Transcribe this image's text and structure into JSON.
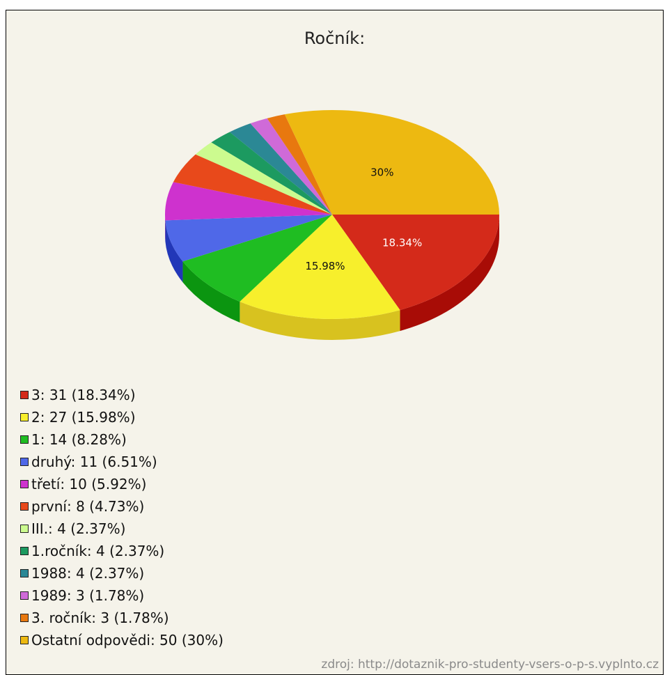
{
  "chart_data": {
    "type": "pie",
    "title": "Ročník:",
    "slices": [
      {
        "label": "3",
        "count": 31,
        "percent": "18.34%",
        "color": "#d42a1a",
        "side_color": "#a80c06",
        "slice_label": "18.34%"
      },
      {
        "label": "2",
        "count": 27,
        "percent": "15.98%",
        "color": "#f7ef2c",
        "side_color": "#d8c21f",
        "slice_label": "15.98%"
      },
      {
        "label": "1",
        "count": 14,
        "percent": "8.28%",
        "color": "#1fbd22",
        "side_color": "#0b9510",
        "slice_label": ""
      },
      {
        "label": "druhý",
        "count": 11,
        "percent": "6.51%",
        "color": "#4f68e8",
        "side_color": "#2237b8",
        "slice_label": ""
      },
      {
        "label": "třetí",
        "count": 10,
        "percent": "5.92%",
        "color": "#ce32ce",
        "side_color": "#9a189a",
        "slice_label": ""
      },
      {
        "label": "první",
        "count": 8,
        "percent": "4.73%",
        "color": "#e8491b",
        "side_color": "#b8300d",
        "slice_label": ""
      },
      {
        "label": "III.",
        "count": 4,
        "percent": "2.37%",
        "color": "#ccfb8f",
        "side_color": "#9cd361",
        "slice_label": ""
      },
      {
        "label": "1.ročník",
        "count": 4,
        "percent": "2.37%",
        "color": "#1c9a60",
        "side_color": "#0f7043",
        "slice_label": ""
      },
      {
        "label": "1988",
        "count": 4,
        "percent": "2.37%",
        "color": "#2b8895",
        "side_color": "#196270",
        "slice_label": ""
      },
      {
        "label": "1989",
        "count": 3,
        "percent": "1.78%",
        "color": "#cf6ad8",
        "side_color": "#a146ad",
        "slice_label": ""
      },
      {
        "label": "3. ročník",
        "count": 3,
        "percent": "1.78%",
        "color": "#e8780f",
        "side_color": "#b9590a",
        "slice_label": ""
      },
      {
        "label": "Ostatní odpovědi",
        "count": 50,
        "percent": "30%",
        "color": "#edb911",
        "side_color": "#c08f08",
        "slice_label": "30%"
      }
    ],
    "legend": [
      "3: 31 (18.34%)",
      "2: 27 (15.98%)",
      "1: 14 (8.28%)",
      "druhý: 11 (6.51%)",
      "třetí: 10 (5.92%)",
      "první: 8 (4.73%)",
      "III.: 4 (2.37%)",
      "1.ročník: 4 (2.37%)",
      "1988: 4 (2.37%)",
      "1989: 3 (1.78%)",
      "3. ročník: 3 (1.78%)",
      "Ostatní odpovědi: 50 (30%)"
    ],
    "legend_placement": "bottom-left"
  },
  "source_text": "zdroj: http://dotaznik-pro-studenty-vsers-o-p-s.vyplnto.cz"
}
